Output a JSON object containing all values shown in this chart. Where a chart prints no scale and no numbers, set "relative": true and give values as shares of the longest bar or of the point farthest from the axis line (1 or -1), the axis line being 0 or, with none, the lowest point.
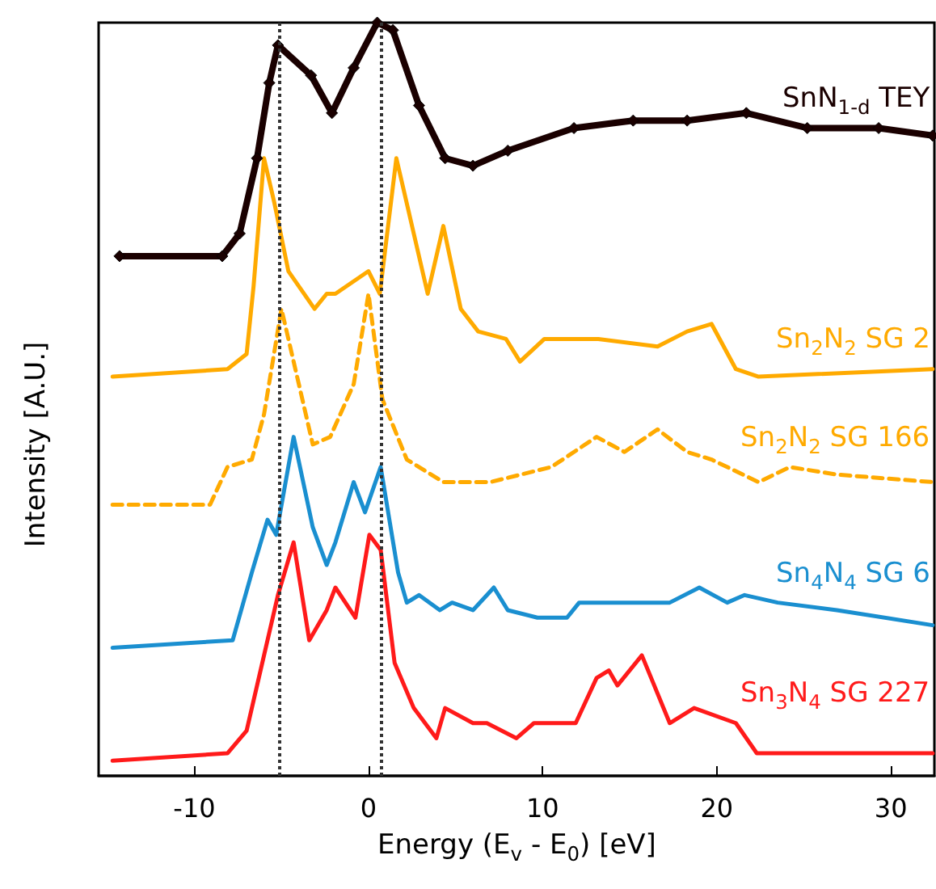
{
  "chart_data": {
    "type": "line",
    "relative": true,
    "xlabel": "Energy (E$_{v}$ - E$_{0}$) [eV]",
    "ylabel": "Intensity [A.U.]",
    "xlim": [
      -15.5,
      32.5
    ],
    "xticks": [
      -10,
      0,
      10,
      20,
      30
    ],
    "grid": false,
    "legend": false,
    "ref_lines": [
      {
        "axis": "x",
        "value": -5.1,
        "color": "#333333",
        "line_style": "dotted"
      },
      {
        "axis": "x",
        "value": 0.75,
        "color": "#333333",
        "line_style": "dotted"
      }
    ],
    "series": [
      {
        "name": "SnN$_{1-d}$ TEY",
        "color": "#1a0000",
        "marker": "diamond",
        "line_style": "solid",
        "x": [
          -14.3,
          -8.4,
          -7.4,
          -6.4,
          -5.7,
          -5.2,
          -3.3,
          -2.1,
          -0.85,
          0.5,
          1.4,
          2.9,
          4.4,
          6.0,
          8.0,
          11.8,
          15.2,
          18.3,
          21.7,
          25.2,
          29.3,
          32.4
        ],
        "values": [
          0.69,
          0.69,
          0.72,
          0.82,
          0.92,
          0.97,
          0.93,
          0.88,
          0.94,
          1.0,
          0.99,
          0.89,
          0.82,
          0.81,
          0.83,
          0.86,
          0.87,
          0.87,
          0.88,
          0.86,
          0.86,
          0.85
        ]
      },
      {
        "name": "Sn$_{2}$N$_{2}$ SG 2",
        "color": "#ffaa00",
        "marker": "none",
        "line_style": "solid",
        "x": [
          -14.7,
          -8.1,
          -7.0,
          -6.6,
          -6.0,
          -5.4,
          -4.6,
          -3.1,
          -2.4,
          -1.9,
          0.0,
          0.65,
          1.6,
          2.6,
          3.4,
          4.3,
          5.3,
          6.3,
          7.9,
          8.7,
          10.1,
          13.2,
          16.6,
          18.3,
          19.7,
          21.1,
          22.4,
          32.4
        ],
        "values": [
          0.53,
          0.54,
          0.56,
          0.65,
          0.82,
          0.76,
          0.67,
          0.62,
          0.64,
          0.64,
          0.67,
          0.64,
          0.82,
          0.72,
          0.64,
          0.73,
          0.62,
          0.59,
          0.58,
          0.55,
          0.58,
          0.58,
          0.57,
          0.59,
          0.6,
          0.54,
          0.53,
          0.54
        ]
      },
      {
        "name": "Sn$_{2}$N$_{2}$ SG 166",
        "color": "#ffaa00",
        "marker": "none",
        "line_style": "dashed",
        "x": [
          -14.7,
          -9.1,
          -8.1,
          -6.7,
          -6.0,
          -5.0,
          -4.3,
          -3.2,
          -2.2,
          -0.85,
          0.0,
          0.8,
          2.2,
          4.3,
          7.0,
          10.5,
          13.1,
          14.7,
          16.6,
          18.3,
          19.7,
          22.4,
          24.2,
          26.9,
          32.4
        ],
        "values": [
          0.36,
          0.36,
          0.41,
          0.42,
          0.48,
          0.62,
          0.55,
          0.44,
          0.45,
          0.52,
          0.64,
          0.5,
          0.42,
          0.39,
          0.39,
          0.41,
          0.45,
          0.43,
          0.46,
          0.43,
          0.42,
          0.39,
          0.41,
          0.4,
          0.39
        ]
      },
      {
        "name": "Sn$_{4}$N$_{4}$ SG 6",
        "color": "#1a8fd0",
        "marker": "none",
        "line_style": "solid",
        "x": [
          -14.7,
          -7.8,
          -6.7,
          -5.8,
          -5.3,
          -4.3,
          -3.2,
          -2.4,
          -1.9,
          -0.85,
          -0.2,
          0.7,
          1.7,
          2.2,
          2.9,
          4.1,
          4.8,
          6.0,
          7.2,
          8.0,
          9.7,
          11.4,
          12.1,
          14.9,
          17.3,
          19.0,
          20.6,
          21.6,
          23.5,
          26.9,
          32.4
        ],
        "values": [
          0.17,
          0.18,
          0.27,
          0.34,
          0.32,
          0.45,
          0.33,
          0.28,
          0.31,
          0.39,
          0.35,
          0.41,
          0.27,
          0.23,
          0.24,
          0.22,
          0.23,
          0.22,
          0.25,
          0.22,
          0.21,
          0.21,
          0.23,
          0.23,
          0.23,
          0.25,
          0.23,
          0.24,
          0.23,
          0.22,
          0.2
        ]
      },
      {
        "name": "Sn$_{3}$N$_{4}$ SG 227",
        "color": "#ff1a1a",
        "marker": "none",
        "line_style": "solid",
        "x": [
          -14.7,
          -8.1,
          -7.0,
          -6.0,
          -5.2,
          -4.3,
          -3.4,
          -2.4,
          -1.9,
          -0.75,
          0.05,
          0.7,
          1.5,
          2.6,
          3.9,
          4.4,
          6.0,
          6.8,
          8.5,
          9.5,
          11.9,
          13.1,
          13.8,
          14.3,
          15.7,
          17.3,
          18.7,
          21.1,
          22.3,
          32.4
        ],
        "values": [
          0.02,
          0.03,
          0.06,
          0.16,
          0.24,
          0.31,
          0.18,
          0.22,
          0.25,
          0.21,
          0.32,
          0.3,
          0.15,
          0.09,
          0.05,
          0.09,
          0.07,
          0.07,
          0.05,
          0.07,
          0.07,
          0.13,
          0.14,
          0.12,
          0.16,
          0.07,
          0.09,
          0.07,
          0.03,
          0.03
        ]
      }
    ]
  }
}
